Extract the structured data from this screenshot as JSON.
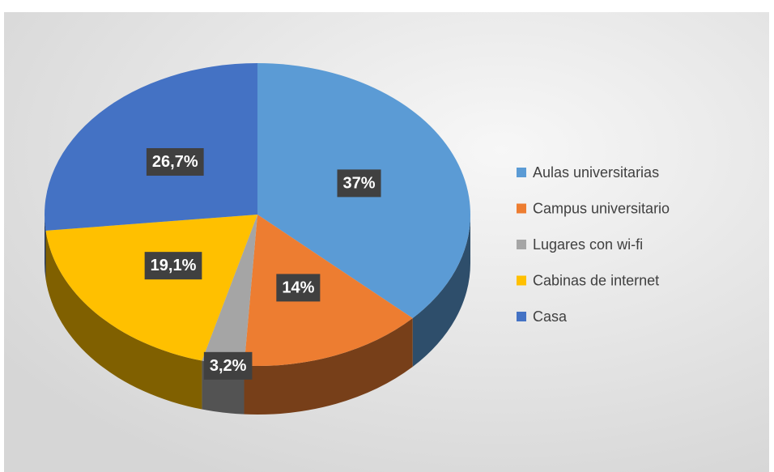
{
  "chart_data": {
    "type": "pie",
    "categories": [
      "Aulas universitarias",
      "Campus universitario",
      "Lugares con wi-fi",
      "Cabinas de internet",
      "Casa"
    ],
    "values": [
      37,
      14,
      3.2,
      19.1,
      26.7
    ],
    "value_labels": [
      "37%",
      "14%",
      "3,2%",
      "19,1%",
      "26,7%"
    ],
    "colors": [
      "#5b9bd5",
      "#ed7d31",
      "#a5a5a5",
      "#ffc000",
      "#4472c4"
    ]
  }
}
